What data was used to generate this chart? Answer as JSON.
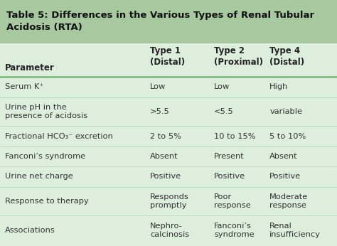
{
  "title": "Table 5: Differences in the Various Types of Renal Tubular\nAcidosis (RTA)",
  "title_bg_color": "#a8c8a0",
  "table_bg_color": "#ddeedd",
  "col_headers": [
    "",
    "Type 1\n(Distal)",
    "Type 2\n(Proximal)",
    "Type 4\n(Distal)"
  ],
  "row_header_label": "Parameter",
  "rows": [
    {
      "param": "Serum K⁺",
      "col1": "Low",
      "col2": "Low",
      "col3": "High"
    },
    {
      "param": "Urine pH in the\npresence of acidosis",
      "col1": ">5.5",
      "col2": "<5.5",
      "col3": "variable"
    },
    {
      "param": "Fractional HCO₃⁻ excretion",
      "col1": "2 to 5%",
      "col2": "10 to 15%",
      "col3": "5 to 10%"
    },
    {
      "param": "Fanconi’s syndrome",
      "col1": "Absent",
      "col2": "Present",
      "col3": "Absent"
    },
    {
      "param": "Urine net charge",
      "col1": "Positive",
      "col2": "Positive",
      "col3": "Positive"
    },
    {
      "param": "Response to therapy",
      "col1": "Responds\npromptly",
      "col2": "Poor\nresponse",
      "col3": "Moderate\nresponse"
    },
    {
      "param": "Associations",
      "col1": "Nephro-\ncalcinosis",
      "col2": "Fanconi’s\nsyndrome",
      "col3": "Renal\ninsufficiency"
    }
  ],
  "header_text_color": "#222222",
  "body_text_color": "#333333",
  "title_text_color": "#111111",
  "divider_color": "#7ab87a",
  "font_size_title": 9.5,
  "font_size_header": 8.5,
  "font_size_body": 8.2
}
